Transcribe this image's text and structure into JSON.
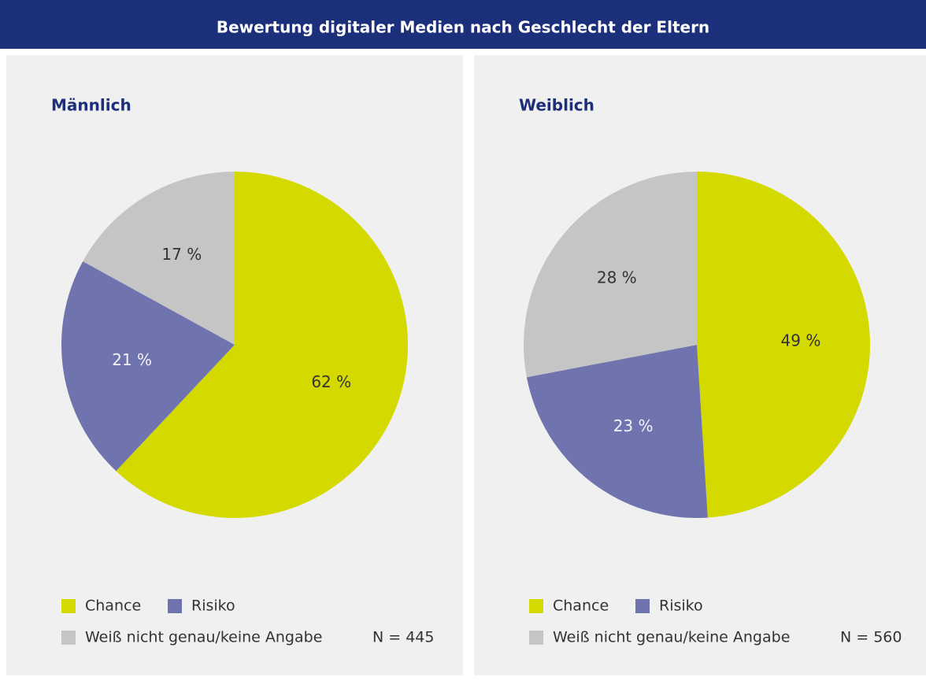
{
  "title": "Bewertung digitaler Medien nach Geschlecht der Eltern",
  "chart_data": [
    {
      "type": "pie",
      "title": "Männlich",
      "categories": [
        "Chance",
        "Risiko",
        "Weiß nicht genau/keine Angabe"
      ],
      "values": [
        62,
        21,
        17
      ],
      "value_labels": [
        "62 %",
        "21 %",
        "17 %"
      ],
      "colors": [
        "#d4d900",
        "#7074ae",
        "#c4c5c4"
      ],
      "note": "N = 445"
    },
    {
      "type": "pie",
      "title": "Weiblich",
      "categories": [
        "Chance",
        "Risiko",
        "Weiß nicht genau/keine Angabe"
      ],
      "values": [
        49,
        23,
        28
      ],
      "value_labels": [
        "49 %",
        "23 %",
        "28 %"
      ],
      "colors": [
        "#d4d900",
        "#7074ae",
        "#c4c5c4"
      ],
      "note": "N = 560"
    }
  ]
}
